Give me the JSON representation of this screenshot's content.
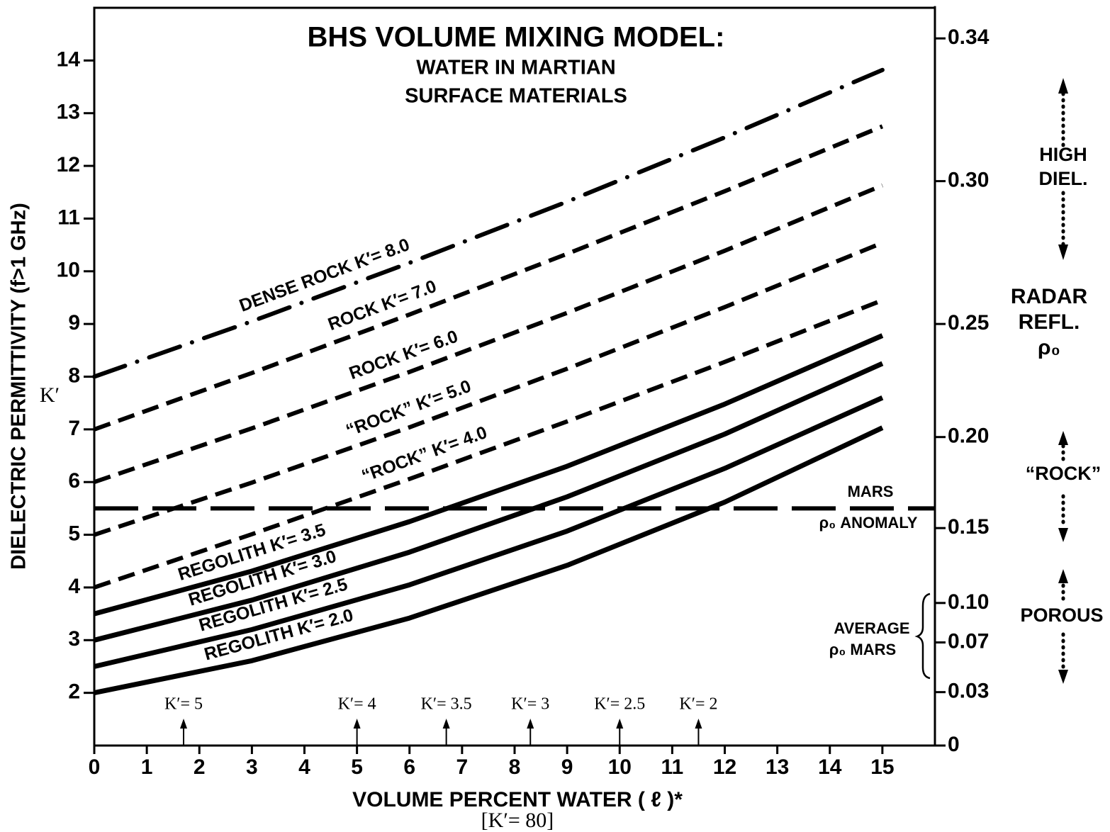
{
  "chart_data": {
    "type": "line",
    "title": "BHS VOLUME MIXING MODEL:",
    "subtitle": [
      "WATER IN MARTIAN",
      "SURFACE MATERIALS"
    ],
    "x_label": "VOLUME PERCENT WATER ( ℓ )*",
    "x_sublabel": "[K′= 80]",
    "y_label": "DIELECTRIC PERMITTIVITY (f>1 GHz)",
    "y_symbol": "K′",
    "x": [
      0,
      3,
      6,
      9,
      12,
      15
    ],
    "xlim": [
      0,
      16
    ],
    "xticks": [
      0,
      1,
      2,
      3,
      4,
      5,
      6,
      7,
      8,
      9,
      10,
      11,
      12,
      13,
      14,
      15
    ],
    "ylim": [
      1,
      15
    ],
    "yticks": [
      2,
      3,
      4,
      5,
      6,
      7,
      8,
      9,
      10,
      11,
      12,
      13,
      14
    ],
    "y2lim": [
      0,
      0.348
    ],
    "y2scale": "reflectivity",
    "y2ticks": [
      0.34,
      {
        "value": 0.3,
        "label": "0.30"
      },
      0.25,
      {
        "value": 0.2,
        "label": "0.20"
      },
      0.15,
      {
        "value": 0.1,
        "label": "0.10"
      },
      0.07,
      0.03,
      0
    ],
    "series": [
      {
        "name": "DENSE ROCK  K′= 8.0",
        "color": "#000000",
        "style": "dashdot",
        "values": [
          8,
          9.05,
          10.16,
          11.32,
          12.54,
          13.82
        ]
      },
      {
        "name": "ROCK  K′= 7.0",
        "color": "#000000",
        "style": "dashed",
        "values": [
          7,
          8.07,
          9.18,
          10.33,
          11.52,
          12.75
        ]
      },
      {
        "name": "ROCK  K′= 6.0",
        "color": "#000000",
        "style": "dashed",
        "values": [
          6,
          7.02,
          8.09,
          9.21,
          10.39,
          11.63
        ]
      },
      {
        "name": "“ROCK”  K′= 5.0",
        "color": "#000000",
        "style": "dashed",
        "values": [
          5,
          5.99,
          7.04,
          8.15,
          9.32,
          10.54
        ]
      },
      {
        "name": "“ROCK”  K′= 4.0",
        "color": "#000000",
        "style": "dashed",
        "values": [
          4,
          5.01,
          6.06,
          7.15,
          8.28,
          9.45
        ]
      },
      {
        "name": "REGOLITH  K′=  3.5",
        "color": "#000000",
        "style": "solid",
        "values": [
          3.5,
          4.31,
          5.25,
          6.3,
          7.48,
          8.78
        ]
      },
      {
        "name": "REGOLITH  K′= 3.0",
        "color": "#000000",
        "style": "solid",
        "values": [
          3,
          3.76,
          4.67,
          5.72,
          6.91,
          8.25
        ]
      },
      {
        "name": "REGOLITH  K′= 2.5",
        "color": "#000000",
        "style": "solid",
        "values": [
          2.5,
          3.2,
          4.05,
          5.07,
          6.26,
          7.6
        ]
      },
      {
        "name": "REGOLITH  K′= 2.0",
        "color": "#000000",
        "style": "solid",
        "values": [
          2,
          2.61,
          3.42,
          4.42,
          5.62,
          7.03
        ]
      }
    ],
    "reference_line": {
      "value": 5.5,
      "labels": [
        "MARS",
        "ρ₀ ANOMALY"
      ],
      "style": "longdash",
      "color": "#000000"
    },
    "markers": [
      {
        "label": "K′= 5",
        "x": 1.7
      },
      {
        "label": "K′= 4",
        "x": 5.0
      },
      {
        "label": "K′= 3.5",
        "x": 6.7
      },
      {
        "label": "K′= 3",
        "x": 8.3
      },
      {
        "label": "K′= 2.5",
        "x": 10.0
      },
      {
        "label": "K′= 2",
        "x": 11.5
      }
    ],
    "average_label": [
      "AVERAGE",
      "ρ₀ MARS"
    ],
    "side_annotations": [
      [
        "HIGH",
        "DIEL."
      ],
      [
        "RADAR",
        "REFL.",
        "ρ₀"
      ],
      [
        "“ROCK”"
      ],
      [
        "POROUS"
      ]
    ]
  }
}
